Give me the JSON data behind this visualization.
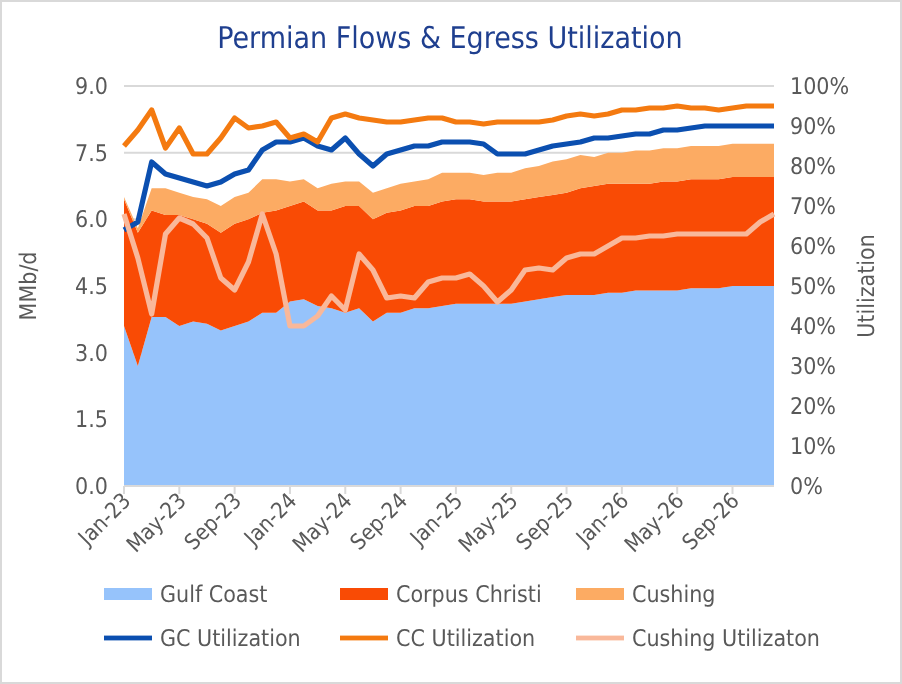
{
  "chart_data": {
    "type": "area",
    "title": "Permian Flows & Egress Utilization",
    "ylabel": "MMb/d",
    "y2label": "Utilization",
    "categories": [
      "Jan-23",
      null,
      null,
      null,
      "May-23",
      null,
      null,
      null,
      "Sep-23",
      null,
      null,
      null,
      "Jan-24",
      null,
      null,
      null,
      "May-24",
      null,
      null,
      null,
      "Sep-24",
      null,
      null,
      null,
      "Jan-25",
      null,
      null,
      null,
      "May-25",
      null,
      null,
      null,
      "Sep-25",
      null,
      null,
      null,
      "Jan-26",
      null,
      null,
      null,
      "May-26",
      null,
      null,
      null,
      "Sep-26",
      null,
      null,
      null
    ],
    "stacked": true,
    "series": [
      {
        "name": "Gulf Coast",
        "color": "#96c3fb",
        "values": [
          3.6,
          2.7,
          3.8,
          3.8,
          3.6,
          3.7,
          3.65,
          3.5,
          3.6,
          3.7,
          3.9,
          3.9,
          4.15,
          4.2,
          4.05,
          4.0,
          3.9,
          4.0,
          3.7,
          3.9,
          3.9,
          4.0,
          4.0,
          4.05,
          4.1,
          4.1,
          4.1,
          4.1,
          4.1,
          4.15,
          4.2,
          4.25,
          4.3,
          4.3,
          4.3,
          4.35,
          4.35,
          4.4,
          4.4,
          4.4,
          4.4,
          4.45,
          4.45,
          4.45,
          4.5,
          4.5,
          4.5,
          4.5
        ]
      },
      {
        "name": "Corpus Christi",
        "color": "#f94b05",
        "values": [
          2.85,
          3.0,
          2.4,
          2.3,
          2.5,
          2.3,
          2.25,
          2.2,
          2.3,
          2.3,
          2.25,
          2.3,
          2.15,
          2.2,
          2.15,
          2.2,
          2.4,
          2.3,
          2.3,
          2.25,
          2.3,
          2.3,
          2.3,
          2.35,
          2.35,
          2.35,
          2.3,
          2.3,
          2.3,
          2.3,
          2.3,
          2.3,
          2.3,
          2.4,
          2.45,
          2.45,
          2.45,
          2.4,
          2.4,
          2.45,
          2.45,
          2.45,
          2.45,
          2.45,
          2.45,
          2.45,
          2.45,
          2.45
        ]
      },
      {
        "name": "Cushing",
        "color": "#fcab63",
        "values": [
          0.05,
          0.1,
          0.5,
          0.6,
          0.5,
          0.5,
          0.55,
          0.6,
          0.6,
          0.6,
          0.75,
          0.7,
          0.55,
          0.5,
          0.5,
          0.6,
          0.55,
          0.55,
          0.6,
          0.55,
          0.6,
          0.55,
          0.6,
          0.65,
          0.6,
          0.6,
          0.6,
          0.65,
          0.65,
          0.7,
          0.7,
          0.75,
          0.75,
          0.75,
          0.65,
          0.7,
          0.7,
          0.75,
          0.75,
          0.75,
          0.75,
          0.75,
          0.75,
          0.75,
          0.75,
          0.75,
          0.75,
          0.75
        ]
      },
      {
        "name": "GC Utilization",
        "type": "line",
        "axis": "y2",
        "color": "#0b4fb0",
        "values": [
          64,
          66,
          81,
          78,
          77,
          76,
          75,
          76,
          78,
          79,
          84,
          86,
          86,
          87,
          85,
          84,
          87,
          83,
          80,
          83,
          84,
          85,
          85,
          86,
          86,
          86,
          85.5,
          83,
          83,
          83,
          84,
          85,
          85.5,
          86,
          87,
          87,
          87.5,
          88,
          88,
          89,
          89,
          89.5,
          90,
          90,
          90,
          90,
          90,
          90
        ]
      },
      {
        "name": "CC Utilization",
        "type": "line",
        "axis": "y2",
        "color": "#f47a10",
        "values": [
          85,
          89,
          94,
          84.5,
          89.5,
          83,
          83,
          87,
          92,
          89.5,
          90,
          91,
          87,
          88,
          86,
          92,
          93,
          92,
          91.5,
          91,
          91,
          91.5,
          92,
          92,
          91,
          91,
          90.5,
          91,
          91,
          91,
          91,
          91.5,
          92.5,
          93,
          92.5,
          93,
          94,
          94,
          94.5,
          94.5,
          95,
          94.5,
          94.5,
          94,
          94.5,
          95,
          95,
          95
        ]
      },
      {
        "name": "Cushing Utilizaton",
        "type": "line",
        "axis": "y2",
        "color": "#f9b89a",
        "values": [
          68,
          57,
          43,
          63,
          67,
          65.5,
          62,
          52,
          49,
          56,
          68,
          58,
          40,
          40,
          42.5,
          47.5,
          44,
          58,
          54,
          47,
          47.5,
          47,
          51,
          52,
          52,
          53,
          50,
          46,
          49,
          54,
          54.5,
          54,
          57,
          58,
          58,
          60,
          62,
          62,
          62.5,
          62.5,
          63,
          63,
          63,
          63,
          63,
          63,
          66,
          68
        ]
      }
    ],
    "ylim": [
      0,
      9
    ],
    "yticks": [
      {
        "value": 0,
        "label": "0.0"
      },
      {
        "value": 1.5,
        "label": "1.5"
      },
      {
        "value": 3,
        "label": "3.0"
      },
      {
        "value": 4.5,
        "label": "4.5"
      },
      {
        "value": 6,
        "label": "6.0"
      },
      {
        "value": 7.5,
        "label": "7.5"
      },
      {
        "value": 9,
        "label": "9.0"
      }
    ],
    "y2lim": [
      0,
      100
    ],
    "y2ticks": [
      {
        "value": 0,
        "label": "0%"
      },
      {
        "value": 10,
        "label": "10%"
      },
      {
        "value": 20,
        "label": "20%"
      },
      {
        "value": 30,
        "label": "30%"
      },
      {
        "value": 40,
        "label": "40%"
      },
      {
        "value": 50,
        "label": "50%"
      },
      {
        "value": 60,
        "label": "60%"
      },
      {
        "value": 70,
        "label": "70%"
      },
      {
        "value": 80,
        "label": "80%"
      },
      {
        "value": 90,
        "label": "90%"
      },
      {
        "value": 100,
        "label": "100%"
      }
    ],
    "grid": "y",
    "legend": "bottom",
    "line_style": "solid"
  }
}
